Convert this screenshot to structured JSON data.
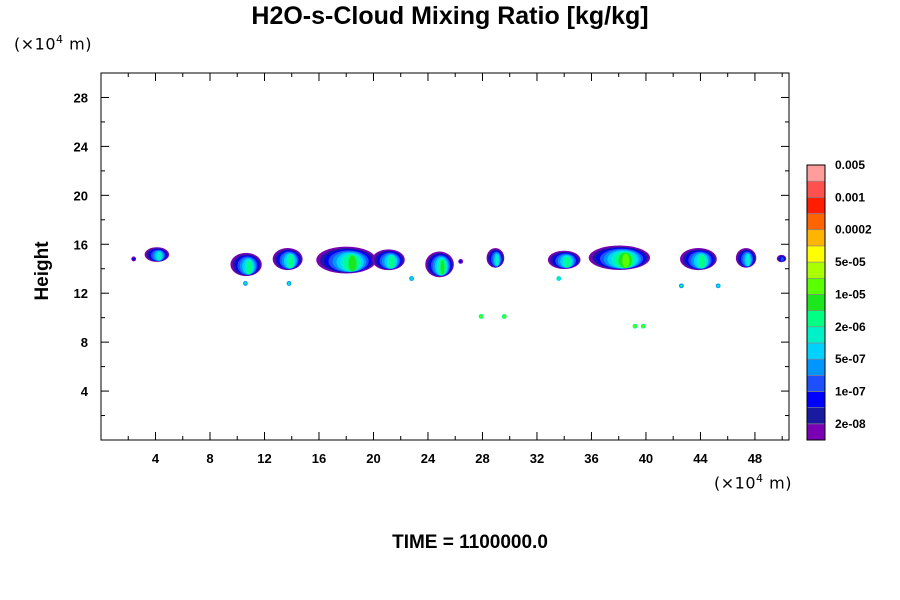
{
  "chart_data": {
    "type": "heatmap",
    "title": "H2O-s-Cloud Mixing Ratio [kg/kg]",
    "ylabel": "Height",
    "xlabel": "",
    "y_unit_prefix": "(×10",
    "y_unit_exp": "4",
    "y_unit_suffix": " m)",
    "x_unit_prefix": "(×10",
    "x_unit_exp": "4",
    "x_unit_suffix": " m)",
    "time_label": "TIME = 1100000.0",
    "xlim": [
      0,
      50.5
    ],
    "ylim": [
      0,
      30
    ],
    "x_ticks": [
      "4",
      "8",
      "12",
      "16",
      "20",
      "24",
      "28",
      "32",
      "36",
      "40",
      "44",
      "48"
    ],
    "x_tick_values": [
      4,
      8,
      12,
      16,
      20,
      24,
      28,
      32,
      36,
      40,
      44,
      48
    ],
    "y_ticks": [
      "4",
      "8",
      "12",
      "16",
      "20",
      "24",
      "28"
    ],
    "y_tick_values": [
      4,
      8,
      12,
      16,
      20,
      24,
      28
    ],
    "colorbar": {
      "levels": [
        "0.005",
        "0.001",
        "0.0002",
        "5e-05",
        "1e-05",
        "2e-06",
        "5e-07",
        "1e-07",
        "2e-08"
      ],
      "colors": [
        "#7a00b4",
        "#1a1aa0",
        "#0000ff",
        "#1e50ff",
        "#0096ff",
        "#00d2ff",
        "#00f0c8",
        "#00ff82",
        "#1ee61e",
        "#5aff00",
        "#aaff00",
        "#ffff00",
        "#ffb400",
        "#ff6400",
        "#ff1e00",
        "#ff5050",
        "#ff9c9c"
      ]
    },
    "cloud_regions": [
      {
        "x": [
          3.2,
          5.0
        ],
        "y": [
          14.5,
          15.7
        ],
        "max_level": 6
      },
      {
        "x": [
          9.5,
          11.8
        ],
        "y": [
          13.3,
          15.2
        ],
        "max_level": 7
      },
      {
        "x": [
          12.6,
          14.8
        ],
        "y": [
          13.8,
          15.6
        ],
        "max_level": 7
      },
      {
        "x": [
          15.8,
          20.2
        ],
        "y": [
          13.5,
          15.7
        ],
        "max_level": 8
      },
      {
        "x": [
          19.9,
          22.3
        ],
        "y": [
          13.8,
          15.5
        ],
        "max_level": 7
      },
      {
        "x": [
          23.8,
          25.9
        ],
        "y": [
          13.2,
          15.3
        ],
        "max_level": 8
      },
      {
        "x": [
          28.3,
          29.6
        ],
        "y": [
          14.0,
          15.6
        ],
        "max_level": 6
      },
      {
        "x": [
          32.8,
          35.2
        ],
        "y": [
          13.9,
          15.4
        ],
        "max_level": 7
      },
      {
        "x": [
          35.8,
          40.3
        ],
        "y": [
          13.8,
          15.8
        ],
        "max_level": 9
      },
      {
        "x": [
          42.5,
          45.2
        ],
        "y": [
          13.8,
          15.6
        ],
        "max_level": 7
      },
      {
        "x": [
          46.6,
          48.1
        ],
        "y": [
          14.0,
          15.6
        ],
        "max_level": 6
      },
      {
        "x": [
          49.6,
          50.3
        ],
        "y": [
          14.5,
          15.1
        ],
        "max_level": 3
      }
    ],
    "isolated_points": [
      {
        "x": 2.4,
        "y": 14.8,
        "level": 2
      },
      {
        "x": 10.6,
        "y": 12.8,
        "level": 6
      },
      {
        "x": 13.8,
        "y": 12.8,
        "level": 6
      },
      {
        "x": 26.4,
        "y": 14.6,
        "level": 2
      },
      {
        "x": 22.8,
        "y": 13.2,
        "level": 6
      },
      {
        "x": 27.9,
        "y": 10.1,
        "level": 9
      },
      {
        "x": 29.6,
        "y": 10.1,
        "level": 9
      },
      {
        "x": 33.6,
        "y": 13.2,
        "level": 7
      },
      {
        "x": 39.2,
        "y": 9.3,
        "level": 9
      },
      {
        "x": 39.8,
        "y": 9.3,
        "level": 9
      },
      {
        "x": 42.6,
        "y": 12.6,
        "level": 6
      },
      {
        "x": 45.3,
        "y": 12.6,
        "level": 6
      }
    ]
  }
}
